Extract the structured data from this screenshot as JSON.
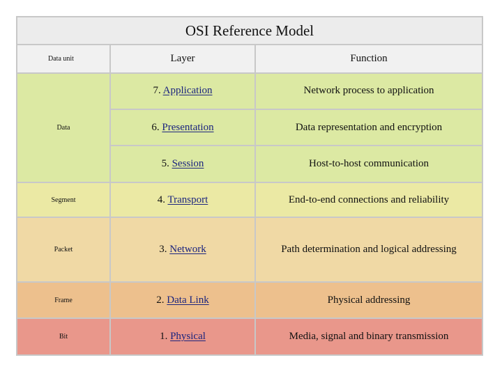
{
  "title": "OSI Reference Model",
  "headers": {
    "data_unit": "Data unit",
    "layer": "Layer",
    "function": "Function"
  },
  "rows": [
    {
      "unit": "Data",
      "num": "7.",
      "layer": "Application",
      "function": "Network process to application",
      "color": "#dce9a3"
    },
    {
      "unit": "",
      "num": "6.",
      "layer": "Presentation",
      "function": "Data representation and encryption",
      "color": "#dce9a3"
    },
    {
      "unit": "",
      "num": "5.",
      "layer": "Session",
      "function": "Host-to-host communication",
      "color": "#dce9a3"
    },
    {
      "unit": "Segment",
      "num": "4.",
      "layer": "Transport",
      "function": "End-to-end connections and reliability",
      "color": "#ebe9a4"
    },
    {
      "unit": "Packet",
      "num": "3.",
      "layer": "Network",
      "function": "Path determination and logical addressing",
      "color": "#f0d9a5"
    },
    {
      "unit": "Frame",
      "num": "2.",
      "layer": "Data Link",
      "function": "Physical addressing",
      "color": "#edc08d"
    },
    {
      "unit": "Bit",
      "num": "1.",
      "layer": "Physical",
      "function": "Media, signal and binary transmission",
      "color": "#e9978b"
    }
  ]
}
